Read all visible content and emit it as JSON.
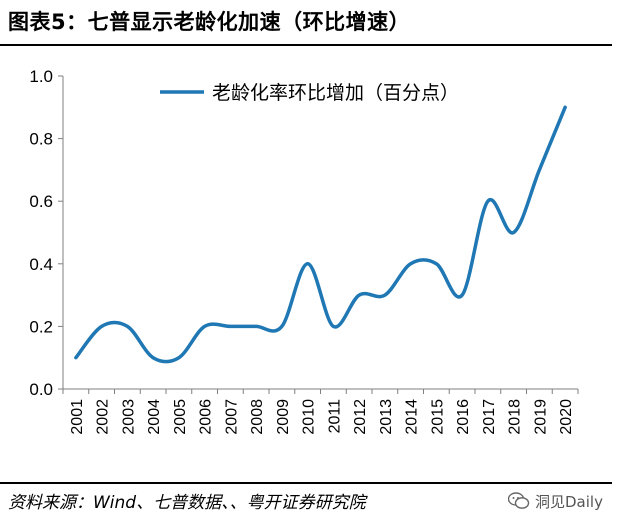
{
  "figure": {
    "title": "图表5：七普显示老龄化加速（环比增速）",
    "source": "资料来源：Wind、七普数据、、粤开证券研究院",
    "watermark": "洞见Daily"
  },
  "chart_data": {
    "type": "line",
    "title": "",
    "xlabel": "",
    "ylabel": "",
    "categories": [
      "2001",
      "2002",
      "2003",
      "2004",
      "2005",
      "2006",
      "2007",
      "2008",
      "2009",
      "2010",
      "2011",
      "2012",
      "2013",
      "2014",
      "2015",
      "2016",
      "2017",
      "2018",
      "2019",
      "2020"
    ],
    "series": [
      {
        "name": "老龄化率环比增加（百分点）",
        "values": [
          0.1,
          0.2,
          0.2,
          0.1,
          0.1,
          0.2,
          0.2,
          0.2,
          0.2,
          0.4,
          0.2,
          0.3,
          0.3,
          0.4,
          0.4,
          0.3,
          0.6,
          0.5,
          0.7,
          0.9
        ],
        "color": "#1f77b4"
      }
    ],
    "ylim": [
      0,
      1.0
    ],
    "yticks": [
      "0.0",
      "0.2",
      "0.4",
      "0.6",
      "0.8",
      "1.0"
    ],
    "grid": false,
    "legend_position": "top"
  }
}
